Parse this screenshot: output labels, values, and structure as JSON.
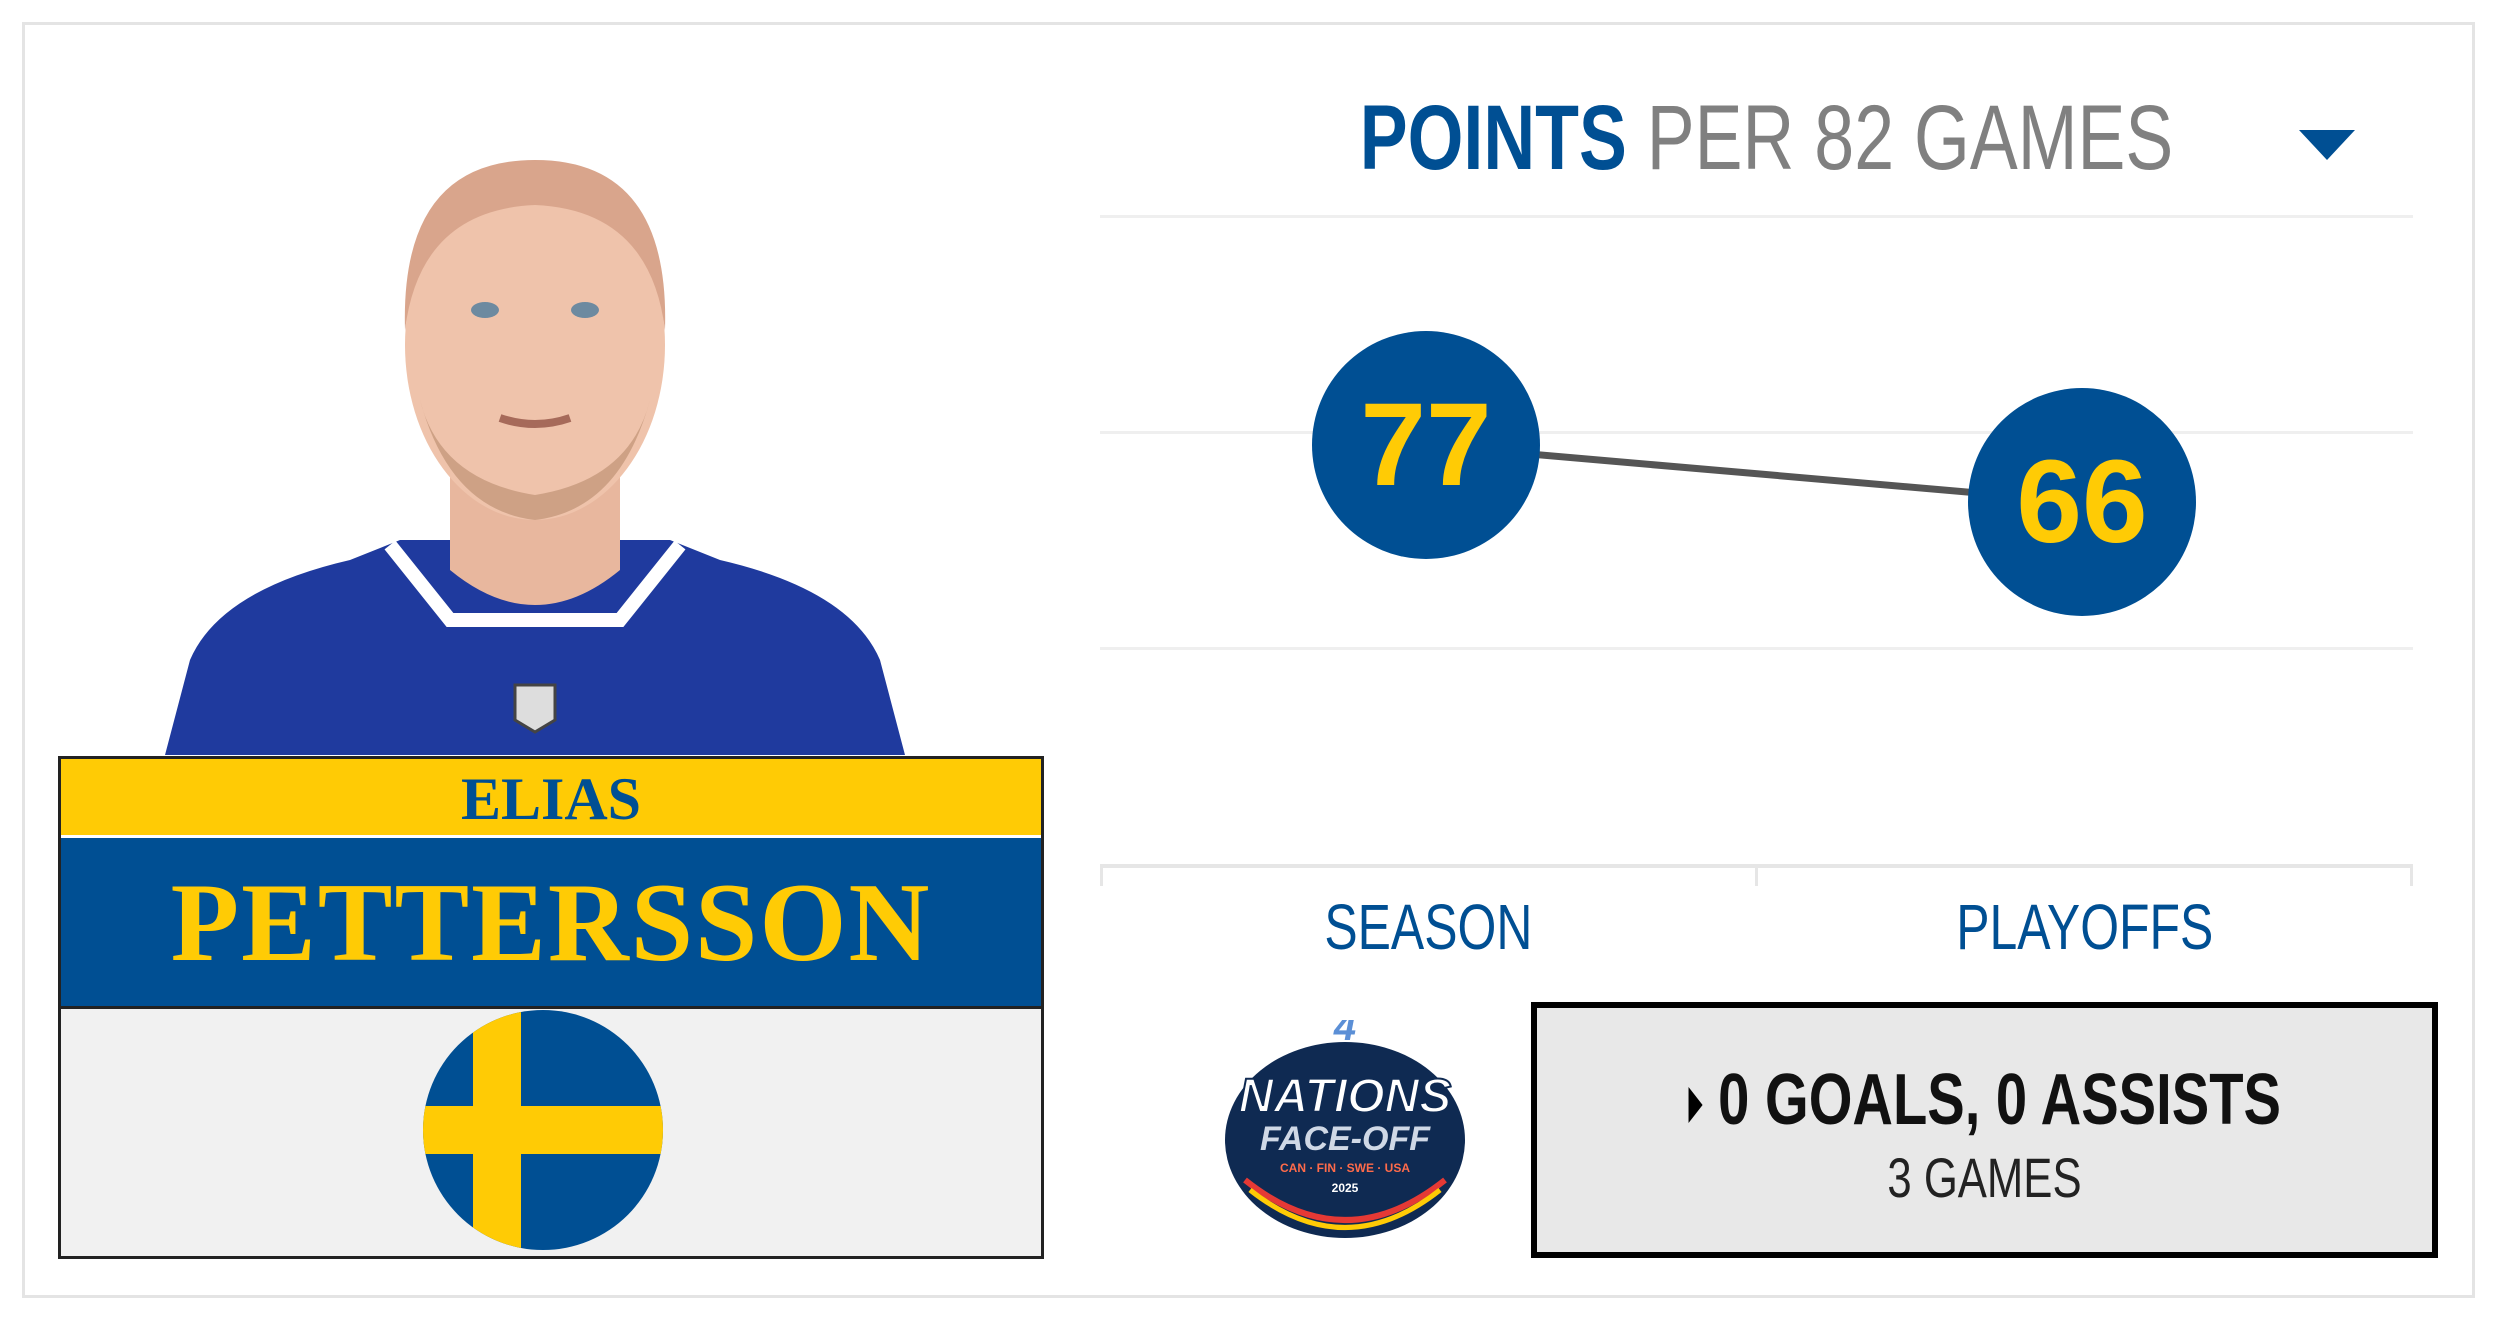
{
  "player": {
    "first_name": "ELIAS",
    "last_name": "PETTERSSON",
    "country_flag": "sweden-flag-icon"
  },
  "stat_selector": {
    "stat": "POINTS",
    "qualifier": "PER 82 GAMES"
  },
  "chart_data": {
    "type": "line",
    "categories": [
      "SEASON",
      "PLAYOFFS"
    ],
    "values": [
      77,
      66
    ],
    "data_labels": [
      "77",
      "66"
    ],
    "grid": true,
    "marker_color": "#004f93",
    "label_color": "#ffcb05",
    "line_color": "#555555"
  },
  "tabs": [
    {
      "label": "SEASON"
    },
    {
      "label": "PLAYOFFS"
    }
  ],
  "tournament": {
    "logo": "4-nations-face-off-logo",
    "logo_text": [
      "4",
      "NATIONS",
      "FACE-OFF",
      "CAN · FIN · SWE · USA",
      "2025"
    ],
    "summary": "0 GOALS, 0 ASSISTS",
    "games": "3 GAMES"
  },
  "colors": {
    "brand_blue": "#004f93",
    "brand_yellow": "#ffcb05"
  }
}
